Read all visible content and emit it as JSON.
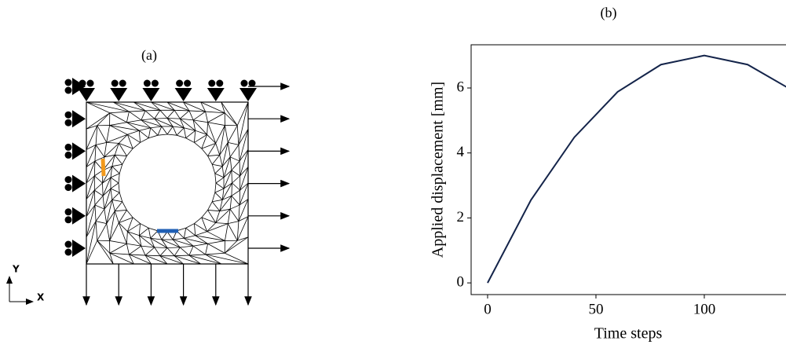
{
  "panel_a": {
    "label": "(a)",
    "axis_y": "Y",
    "axis_x": "X"
  },
  "chart_data": {
    "type": "line",
    "title": "(b)",
    "x_label": "Time steps",
    "y_label": "Applied displacement [mm]",
    "x": [
      0,
      20,
      40,
      60,
      80,
      100,
      120,
      140
    ],
    "series": [
      {
        "color": "#14244a",
        "values": [
          0,
          2.55,
          4.48,
          5.88,
          6.72,
          7.0,
          6.72,
          5.95
        ]
      }
    ],
    "xlim": [
      -7.6,
      137.7
    ],
    "xticks": [
      0,
      50,
      100
    ],
    "ylim": [
      -0.36,
      7.33
    ],
    "yticks": [
      0,
      2,
      4,
      6
    ]
  }
}
